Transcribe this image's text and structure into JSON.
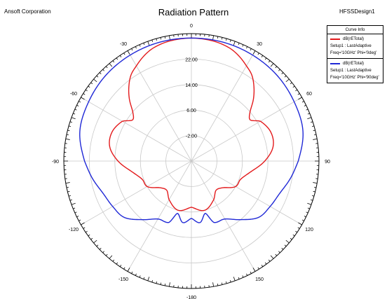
{
  "header": {
    "company": "Ansoft Corporation",
    "design": "HFSSDesign1"
  },
  "legend": {
    "title": "Curve Info",
    "entries": [
      {
        "quantity": "dB(rETotal)",
        "setup": "Setup1 : LastAdaptive",
        "freq": "Freq='10GHz' Phi='0deg'",
        "color": "#e31a1c"
      },
      {
        "quantity": "dB(rETotal)",
        "setup": "Setup1 : LastAdaptive",
        "freq": "Freq='10GHz' Phi='90deg'",
        "color": "#1f28d6"
      }
    ]
  },
  "chart_data": {
    "type": "polar",
    "title": "Radiation Pattern",
    "angle_unit": "deg",
    "angle_labels": [
      "0",
      "30",
      "60",
      "90",
      "120",
      "150",
      "-180",
      "-150",
      "-120",
      "-90",
      "-60",
      "-30"
    ],
    "radial_range": [
      -10,
      30
    ],
    "radial_ticks": [
      -2.0,
      6.0,
      14.0,
      22.0
    ],
    "radial_tick_labels": [
      "-2.00",
      "6.00",
      "14.00",
      "22.00"
    ],
    "grid": true,
    "legend_position": "top-right",
    "series": [
      {
        "name": "dB(rETotal) Setup1 : LastAdaptive Freq='10GHz' Phi='0deg'",
        "color": "#e31a1c",
        "theta": [
          -180,
          -165,
          -150,
          -140,
          -130,
          -120,
          -110,
          -100,
          -90,
          -80,
          -70,
          -60,
          -55,
          -50,
          -45,
          -40,
          -35,
          -30,
          -25,
          -20,
          -15,
          -10,
          -5,
          0,
          5,
          10,
          15,
          20,
          25,
          30,
          35,
          40,
          45,
          50,
          55,
          60,
          70,
          80,
          90,
          100,
          110,
          120,
          130,
          140,
          150,
          165,
          180
        ],
        "r_db": [
          4.5,
          6.0,
          4.0,
          2.0,
          3.0,
          6.0,
          6.5,
          9.0,
          13.0,
          16.0,
          16.5,
          15.0,
          12.5,
          14.0,
          17.5,
          20.5,
          23.0,
          24.5,
          26.0,
          27.2,
          27.9,
          28.3,
          28.5,
          28.6,
          28.5,
          28.3,
          27.9,
          27.2,
          26.0,
          24.5,
          23.0,
          20.5,
          17.5,
          14.0,
          12.5,
          15.0,
          16.5,
          16.0,
          13.0,
          9.0,
          6.5,
          6.0,
          3.0,
          2.0,
          4.0,
          6.0,
          4.5
        ]
      },
      {
        "name": "dB(rETotal) Setup1 : LastAdaptive Freq='10GHz' Phi='90deg'",
        "color": "#1f28d6",
        "theta": [
          -180,
          -172,
          -165,
          -160,
          -150,
          -140,
          -130,
          -120,
          -110,
          -100,
          -90,
          -75,
          -60,
          -45,
          -30,
          -15,
          0,
          15,
          30,
          45,
          60,
          75,
          90,
          100,
          110,
          120,
          130,
          140,
          150,
          160,
          165,
          172,
          180
        ],
        "r_db": [
          8.0,
          9.5,
          7.0,
          10.5,
          11.0,
          14.0,
          17.5,
          18.5,
          19.5,
          21.5,
          23.5,
          26.2,
          27.2,
          28.0,
          28.4,
          28.6,
          28.6,
          28.6,
          28.4,
          28.0,
          27.2,
          26.2,
          23.5,
          21.5,
          19.5,
          18.5,
          17.5,
          14.0,
          11.0,
          10.5,
          7.0,
          9.5,
          8.0
        ]
      }
    ]
  }
}
